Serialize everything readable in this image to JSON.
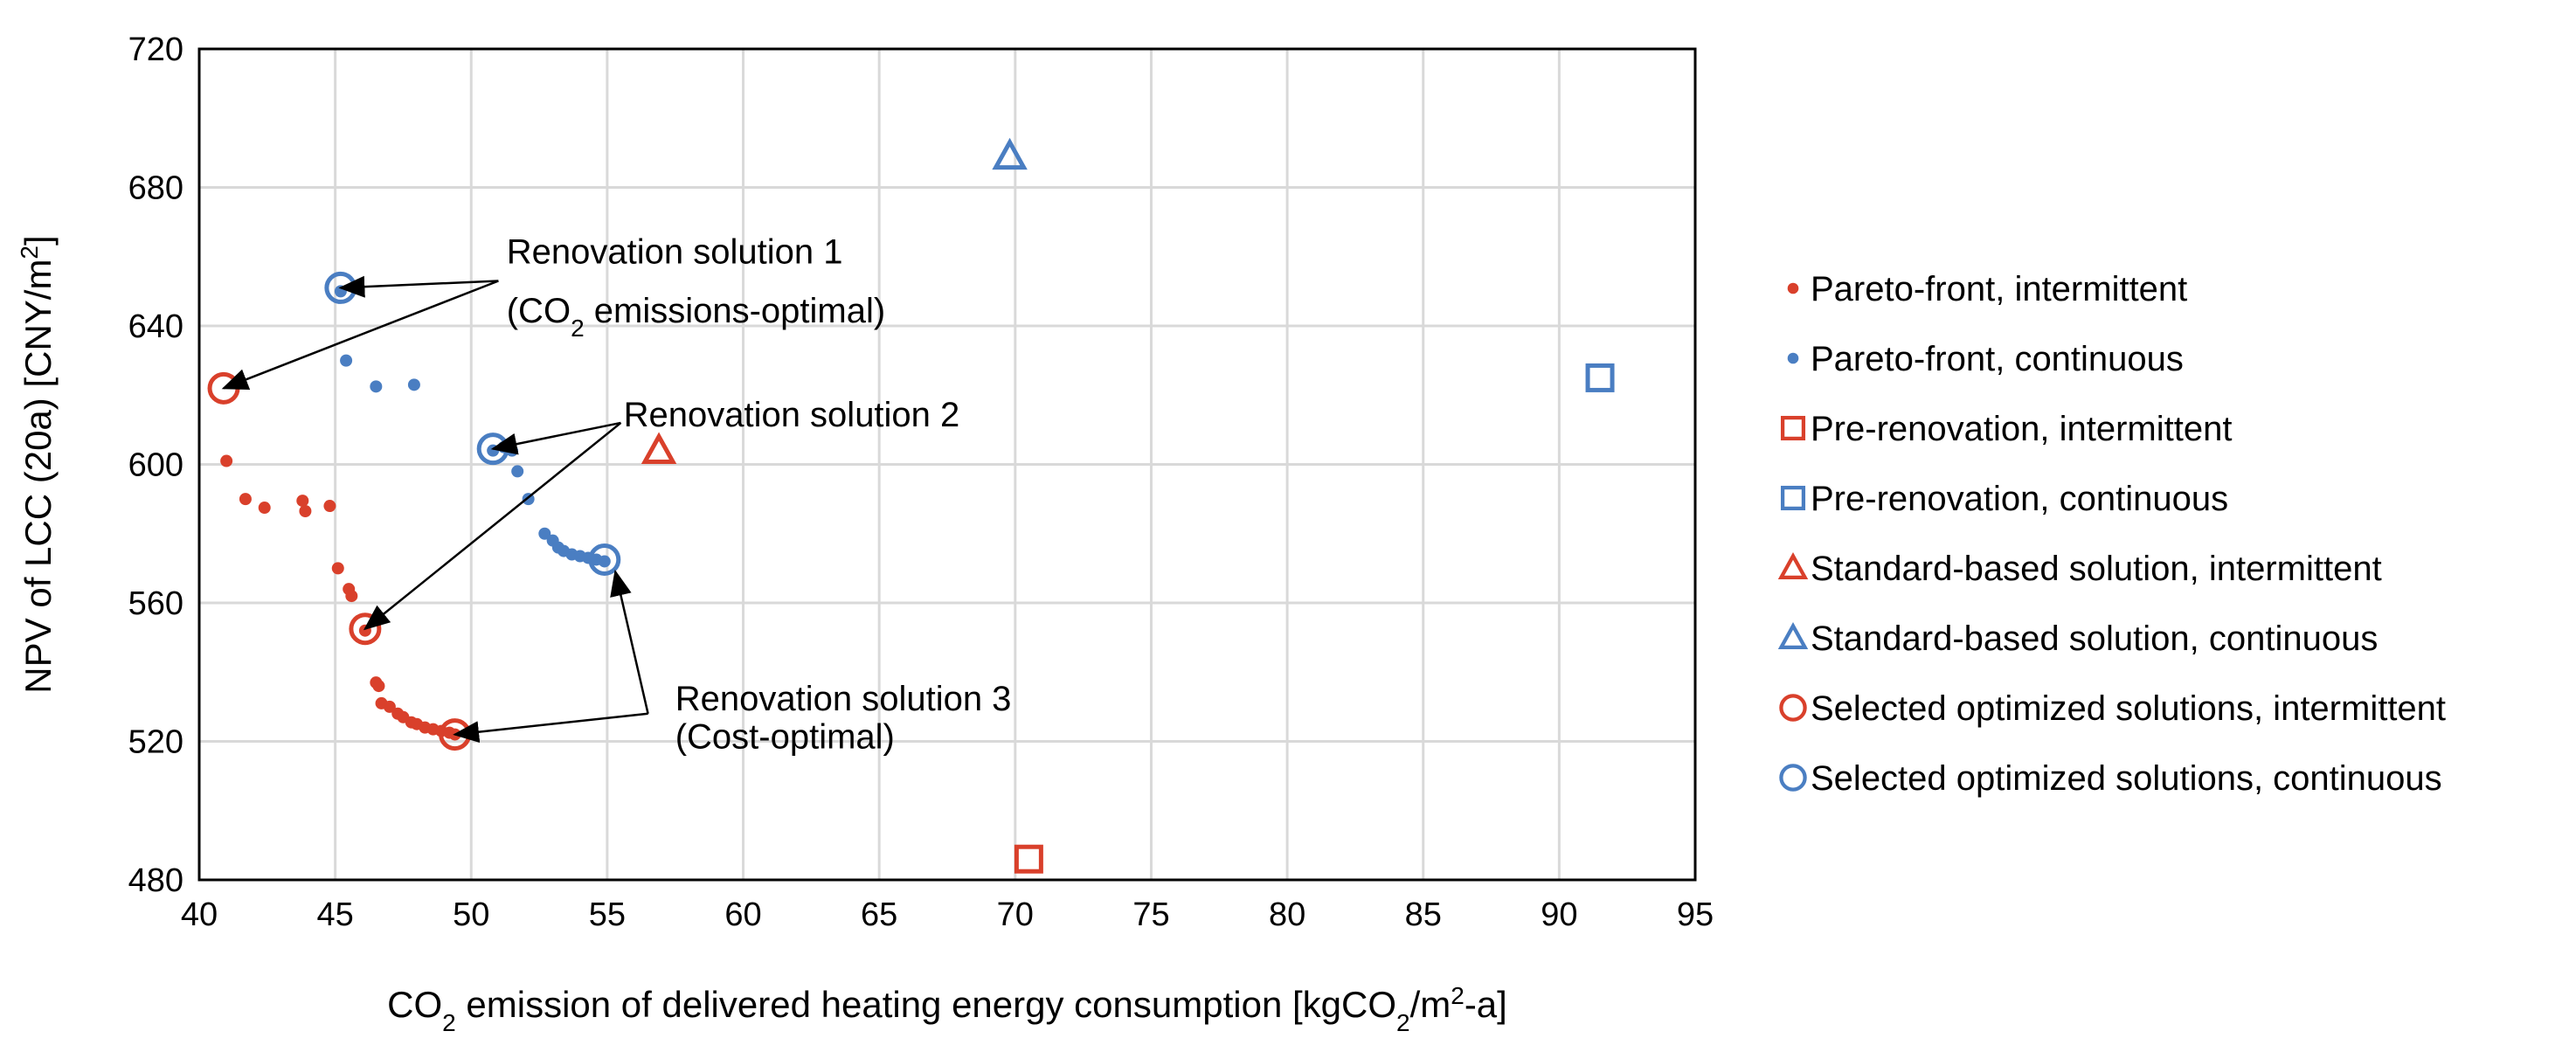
{
  "chart_data": {
    "type": "scatter",
    "title": "",
    "xlabel": {
      "pre": "CO",
      "sub1": "2",
      "mid": " emission of delivered heating energy consumption [kgCO",
      "sub2": "2",
      "mid2": "/m",
      "sup": "2",
      "post": "-a]"
    },
    "ylabel": {
      "pre": "NPV of LCC (20a) [CNY/m",
      "sup": "2",
      "post": "]"
    },
    "xlim": [
      40,
      95
    ],
    "ylim": [
      480,
      720
    ],
    "xticks": [
      "40",
      "45",
      "50",
      "55",
      "60",
      "65",
      "70",
      "75",
      "80",
      "85",
      "90",
      "95"
    ],
    "yticks": [
      "480",
      "520",
      "560",
      "600",
      "640",
      "680",
      "720"
    ],
    "grid": true,
    "colors": {
      "intermittent": "#D9402B",
      "continuous": "#4A7EC2"
    },
    "series": [
      {
        "name": "Pareto-front, intermittent",
        "marker": "dot",
        "color": "intermittent",
        "points": [
          [
            41.0,
            601
          ],
          [
            41.7,
            590
          ],
          [
            42.4,
            587.5
          ],
          [
            43.8,
            589.5
          ],
          [
            43.9,
            586.5
          ],
          [
            44.8,
            588
          ],
          [
            45.1,
            570
          ],
          [
            45.5,
            564
          ],
          [
            45.6,
            562
          ],
          [
            46.1,
            552
          ],
          [
            46.5,
            537
          ],
          [
            46.6,
            536
          ],
          [
            46.7,
            531
          ],
          [
            47.0,
            530
          ],
          [
            47.3,
            528
          ],
          [
            47.5,
            527
          ],
          [
            47.8,
            525.5
          ],
          [
            48.0,
            525
          ],
          [
            48.3,
            524
          ],
          [
            48.6,
            523.5
          ],
          [
            48.9,
            523
          ],
          [
            49.2,
            522.5
          ],
          [
            49.4,
            522
          ]
        ]
      },
      {
        "name": "Pareto-front, continuous",
        "marker": "dot",
        "color": "continuous",
        "points": [
          [
            45.2,
            650
          ],
          [
            45.4,
            630
          ],
          [
            46.5,
            622.5
          ],
          [
            47.9,
            623
          ],
          [
            50.8,
            604
          ],
          [
            51.2,
            605
          ],
          [
            51.5,
            604
          ],
          [
            51.7,
            598
          ],
          [
            52.1,
            590
          ],
          [
            52.7,
            580
          ],
          [
            53.0,
            578
          ],
          [
            53.2,
            576
          ],
          [
            53.4,
            575
          ],
          [
            53.7,
            574
          ],
          [
            54.0,
            573.5
          ],
          [
            54.3,
            573
          ],
          [
            54.6,
            572.5
          ],
          [
            54.9,
            572
          ]
        ]
      },
      {
        "name": "Pre-renovation, intermittent",
        "marker": "square",
        "color": "intermittent",
        "points": [
          [
            70.5,
            486
          ]
        ]
      },
      {
        "name": "Pre-renovation, continuous",
        "marker": "square",
        "color": "continuous",
        "points": [
          [
            91.5,
            625
          ]
        ]
      },
      {
        "name": "Standard-based solution, intermittent",
        "marker": "triangle",
        "color": "intermittent",
        "points": [
          [
            56.9,
            604
          ]
        ]
      },
      {
        "name": "Standard-based solution, continuous",
        "marker": "triangle",
        "color": "continuous",
        "points": [
          [
            69.8,
            689
          ]
        ]
      },
      {
        "name": "Selected optimized solutions, intermittent",
        "marker": "circle",
        "color": "intermittent",
        "points": [
          [
            40.9,
            622
          ],
          [
            46.1,
            552.5
          ],
          [
            49.4,
            522
          ]
        ]
      },
      {
        "name": "Selected optimized solutions, continuous",
        "marker": "circle",
        "color": "continuous",
        "points": [
          [
            45.2,
            651
          ],
          [
            50.8,
            604.5
          ],
          [
            54.9,
            572.5
          ]
        ]
      }
    ],
    "annotations": [
      {
        "id": "sol1",
        "lines": [
          "Renovation solution 1",
          "(CO",
          "2",
          " emissions-optimal)"
        ],
        "anchor": [
          51.0,
          653
        ],
        "targets": [
          [
            45.2,
            651
          ],
          [
            40.9,
            622
          ]
        ]
      },
      {
        "id": "sol2",
        "lines": [
          "Renovation solution 2"
        ],
        "anchor": [
          55.5,
          612
        ],
        "targets": [
          [
            50.8,
            604.5
          ],
          [
            46.1,
            552.5
          ]
        ]
      },
      {
        "id": "sol3",
        "lines": [
          "Renovation solution 3",
          "(Cost-optimal)"
        ],
        "anchor": [
          56.5,
          528
        ],
        "targets": [
          [
            55.3,
            569
          ],
          [
            49.4,
            522
          ]
        ]
      }
    ],
    "legend_position": "right"
  }
}
